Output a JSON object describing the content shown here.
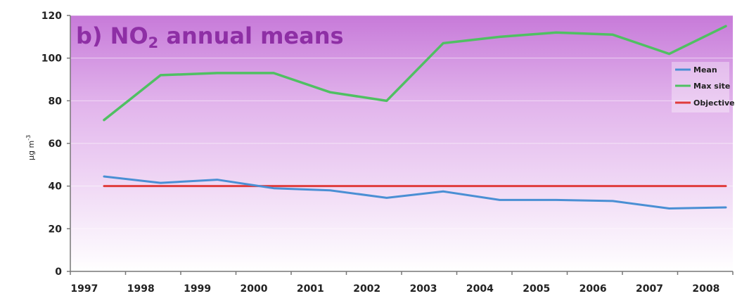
{
  "chart_data": {
    "type": "line",
    "title": "b) NO",
    "title_sub": "2",
    "title_rest": " annual means",
    "ylabel": "µg m",
    "ylabel_sup": "-3",
    "ylim": [
      0,
      120
    ],
    "yticks": [
      0,
      20,
      40,
      60,
      80,
      100,
      120
    ],
    "ytick_labels": [
      "0",
      "20",
      "40",
      "60",
      "80",
      "100",
      "120"
    ],
    "categories": [
      "1997",
      "1998",
      "1999",
      "2000",
      "2001",
      "2002",
      "2003",
      "2004",
      "2005",
      "2006",
      "2007",
      "2008"
    ],
    "grid": true,
    "legend_position": "right",
    "series": [
      {
        "name": "Mean",
        "color": "#4a8fd4",
        "values": [
          44.5,
          41.5,
          43,
          39,
          38,
          34.5,
          37.5,
          33.5,
          33.5,
          33,
          29.5,
          30
        ]
      },
      {
        "name": "Max site",
        "color": "#4fc062",
        "values": [
          71,
          92,
          93,
          93,
          84,
          80,
          107,
          110,
          112,
          111,
          102,
          115
        ]
      },
      {
        "name": "Objective",
        "color": "#e03c3c",
        "values": [
          40,
          40,
          40,
          40,
          40,
          40,
          40,
          40,
          40,
          40,
          40,
          40
        ]
      }
    ],
    "colors": {
      "background_top": "#c77ad9",
      "background_bottom": "#ffffff",
      "title": "#8e2fa5"
    }
  }
}
